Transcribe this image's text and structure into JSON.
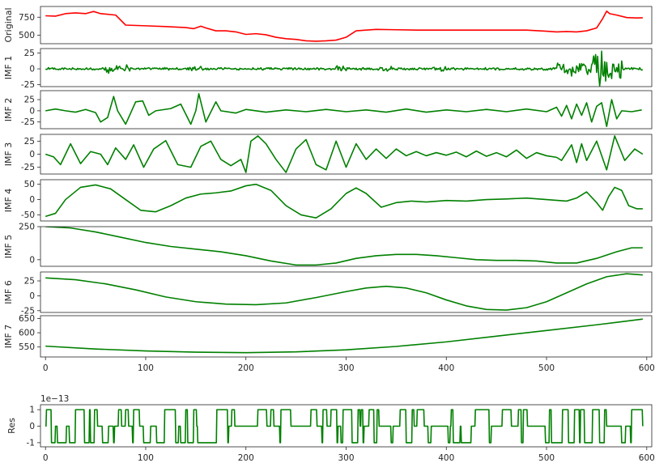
{
  "figure": {
    "background": "#ffffff",
    "axes_color": "#262626"
  },
  "chart_data": [
    {
      "type": "line",
      "ylabel": "Original",
      "ylim": [
        380,
        900
      ],
      "yticks": [
        500,
        750
      ],
      "color": "#ff0000",
      "xlim": [
        -5,
        605
      ],
      "xticks": [],
      "xtick_labels": [],
      "points": [
        [
          0,
          770
        ],
        [
          10,
          765
        ],
        [
          20,
          800
        ],
        [
          30,
          810
        ],
        [
          40,
          800
        ],
        [
          48,
          830
        ],
        [
          55,
          800
        ],
        [
          70,
          780
        ],
        [
          80,
          640
        ],
        [
          100,
          630
        ],
        [
          120,
          620
        ],
        [
          140,
          605
        ],
        [
          148,
          590
        ],
        [
          155,
          625
        ],
        [
          160,
          600
        ],
        [
          170,
          560
        ],
        [
          180,
          560
        ],
        [
          190,
          545
        ],
        [
          200,
          510
        ],
        [
          210,
          520
        ],
        [
          220,
          505
        ],
        [
          230,
          470
        ],
        [
          240,
          450
        ],
        [
          250,
          440
        ],
        [
          260,
          420
        ],
        [
          270,
          415
        ],
        [
          280,
          420
        ],
        [
          290,
          430
        ],
        [
          300,
          470
        ],
        [
          310,
          560
        ],
        [
          320,
          570
        ],
        [
          330,
          580
        ],
        [
          350,
          575
        ],
        [
          370,
          570
        ],
        [
          400,
          570
        ],
        [
          450,
          570
        ],
        [
          480,
          570
        ],
        [
          500,
          555
        ],
        [
          510,
          545
        ],
        [
          520,
          550
        ],
        [
          530,
          545
        ],
        [
          540,
          560
        ],
        [
          550,
          600
        ],
        [
          556,
          730
        ],
        [
          560,
          835
        ],
        [
          563,
          800
        ],
        [
          570,
          780
        ],
        [
          580,
          745
        ],
        [
          590,
          740
        ],
        [
          596,
          742
        ]
      ]
    },
    {
      "type": "line",
      "ylabel": "IMF 1",
      "ylim": [
        -28,
        32
      ],
      "yticks": [
        -25,
        0,
        25
      ],
      "color": "#008000",
      "xlim": [
        -5,
        605
      ],
      "xticks": [],
      "xtick_labels": [],
      "generator": "noise",
      "amplitude": 2,
      "bursts": [
        [
          60,
          85,
          7
        ],
        [
          140,
          155,
          5
        ],
        [
          290,
          305,
          5
        ],
        [
          330,
          345,
          4
        ],
        [
          385,
          400,
          4
        ],
        [
          510,
          545,
          12
        ],
        [
          545,
          575,
          28
        ]
      ]
    },
    {
      "type": "line",
      "ylabel": "IMF 2",
      "ylim": [
        -40,
        45
      ],
      "yticks": [
        -25,
        0,
        25
      ],
      "color": "#008000",
      "xlim": [
        -5,
        605
      ],
      "xticks": [],
      "xtick_labels": [],
      "points": [
        [
          0,
          0
        ],
        [
          10,
          4
        ],
        [
          20,
          0
        ],
        [
          30,
          -3
        ],
        [
          40,
          3
        ],
        [
          50,
          -4
        ],
        [
          55,
          -25
        ],
        [
          62,
          -15
        ],
        [
          68,
          32
        ],
        [
          72,
          0
        ],
        [
          80,
          -30
        ],
        [
          90,
          20
        ],
        [
          97,
          22
        ],
        [
          103,
          -10
        ],
        [
          110,
          0
        ],
        [
          125,
          5
        ],
        [
          135,
          15
        ],
        [
          145,
          -30
        ],
        [
          150,
          0
        ],
        [
          153,
          38
        ],
        [
          160,
          -25
        ],
        [
          170,
          20
        ],
        [
          175,
          0
        ],
        [
          190,
          -5
        ],
        [
          200,
          3
        ],
        [
          220,
          -3
        ],
        [
          240,
          2
        ],
        [
          260,
          -2
        ],
        [
          280,
          3
        ],
        [
          300,
          -2
        ],
        [
          320,
          2
        ],
        [
          340,
          -3
        ],
        [
          360,
          4
        ],
        [
          380,
          -3
        ],
        [
          400,
          2
        ],
        [
          420,
          -2
        ],
        [
          440,
          3
        ],
        [
          460,
          -2
        ],
        [
          480,
          4
        ],
        [
          500,
          -2
        ],
        [
          510,
          8
        ],
        [
          515,
          -12
        ],
        [
          520,
          12
        ],
        [
          525,
          -18
        ],
        [
          530,
          15
        ],
        [
          535,
          -10
        ],
        [
          540,
          18
        ],
        [
          545,
          -25
        ],
        [
          550,
          10
        ],
        [
          555,
          18
        ],
        [
          560,
          -35
        ],
        [
          565,
          25
        ],
        [
          570,
          -18
        ],
        [
          575,
          0
        ],
        [
          585,
          -2
        ],
        [
          595,
          2
        ]
      ]
    },
    {
      "type": "line",
      "ylabel": "IMF 3",
      "ylim": [
        -38,
        38
      ],
      "yticks": [
        -25,
        0,
        25
      ],
      "color": "#008000",
      "xlim": [
        -5,
        605
      ],
      "xticks": [],
      "xtick_labels": [],
      "points": [
        [
          0,
          0
        ],
        [
          8,
          -5
        ],
        [
          15,
          -20
        ],
        [
          25,
          20
        ],
        [
          35,
          -18
        ],
        [
          45,
          5
        ],
        [
          55,
          0
        ],
        [
          62,
          -20
        ],
        [
          70,
          12
        ],
        [
          80,
          -10
        ],
        [
          88,
          18
        ],
        [
          98,
          -25
        ],
        [
          108,
          10
        ],
        [
          120,
          26
        ],
        [
          132,
          -20
        ],
        [
          145,
          -25
        ],
        [
          155,
          15
        ],
        [
          165,
          25
        ],
        [
          175,
          -10
        ],
        [
          185,
          -22
        ],
        [
          195,
          -10
        ],
        [
          200,
          -35
        ],
        [
          205,
          25
        ],
        [
          212,
          35
        ],
        [
          220,
          20
        ],
        [
          230,
          -10
        ],
        [
          240,
          -35
        ],
        [
          250,
          10
        ],
        [
          260,
          28
        ],
        [
          270,
          -20
        ],
        [
          280,
          -30
        ],
        [
          290,
          25
        ],
        [
          300,
          -25
        ],
        [
          310,
          20
        ],
        [
          320,
          -10
        ],
        [
          330,
          10
        ],
        [
          340,
          -8
        ],
        [
          350,
          10
        ],
        [
          360,
          -3
        ],
        [
          370,
          5
        ],
        [
          380,
          -3
        ],
        [
          390,
          3
        ],
        [
          400,
          -2
        ],
        [
          410,
          4
        ],
        [
          420,
          -5
        ],
        [
          430,
          6
        ],
        [
          440,
          -4
        ],
        [
          450,
          3
        ],
        [
          460,
          -5
        ],
        [
          470,
          8
        ],
        [
          480,
          -8
        ],
        [
          490,
          3
        ],
        [
          500,
          -3
        ],
        [
          510,
          -6
        ],
        [
          515,
          -12
        ],
        [
          525,
          18
        ],
        [
          530,
          -16
        ],
        [
          535,
          20
        ],
        [
          540,
          -12
        ],
        [
          550,
          25
        ],
        [
          560,
          -30
        ],
        [
          568,
          35
        ],
        [
          578,
          -12
        ],
        [
          588,
          10
        ],
        [
          596,
          0
        ]
      ]
    },
    {
      "type": "line",
      "ylabel": "IMF 4",
      "ylim": [
        -70,
        65
      ],
      "yticks": [
        -50,
        0,
        50
      ],
      "color": "#008000",
      "xlim": [
        -5,
        605
      ],
      "xticks": [],
      "xtick_labels": [],
      "points": [
        [
          0,
          -55
        ],
        [
          10,
          -45
        ],
        [
          20,
          0
        ],
        [
          35,
          40
        ],
        [
          50,
          48
        ],
        [
          65,
          35
        ],
        [
          80,
          0
        ],
        [
          95,
          -35
        ],
        [
          110,
          -40
        ],
        [
          125,
          -20
        ],
        [
          140,
          5
        ],
        [
          155,
          18
        ],
        [
          170,
          22
        ],
        [
          185,
          28
        ],
        [
          200,
          45
        ],
        [
          210,
          50
        ],
        [
          225,
          30
        ],
        [
          240,
          -20
        ],
        [
          255,
          -50
        ],
        [
          270,
          -60
        ],
        [
          285,
          -30
        ],
        [
          300,
          20
        ],
        [
          310,
          38
        ],
        [
          320,
          20
        ],
        [
          335,
          -25
        ],
        [
          350,
          -10
        ],
        [
          365,
          -5
        ],
        [
          380,
          -8
        ],
        [
          400,
          -3
        ],
        [
          420,
          -5
        ],
        [
          440,
          0
        ],
        [
          460,
          2
        ],
        [
          480,
          5
        ],
        [
          500,
          0
        ],
        [
          520,
          -5
        ],
        [
          530,
          5
        ],
        [
          540,
          25
        ],
        [
          550,
          -10
        ],
        [
          556,
          -35
        ],
        [
          562,
          10
        ],
        [
          568,
          40
        ],
        [
          575,
          30
        ],
        [
          582,
          -20
        ],
        [
          590,
          -30
        ],
        [
          596,
          -30
        ]
      ]
    },
    {
      "type": "line",
      "ylabel": "IMF 5",
      "ylim": [
        -50,
        250
      ],
      "yticks": [
        0,
        250
      ],
      "color": "#008000",
      "xlim": [
        -5,
        605
      ],
      "xticks": [],
      "xtick_labels": [],
      "points": [
        [
          0,
          250
        ],
        [
          25,
          240
        ],
        [
          50,
          210
        ],
        [
          75,
          170
        ],
        [
          100,
          130
        ],
        [
          125,
          100
        ],
        [
          150,
          80
        ],
        [
          175,
          60
        ],
        [
          200,
          30
        ],
        [
          225,
          -10
        ],
        [
          250,
          -40
        ],
        [
          270,
          -40
        ],
        [
          290,
          -25
        ],
        [
          310,
          10
        ],
        [
          330,
          30
        ],
        [
          350,
          40
        ],
        [
          370,
          40
        ],
        [
          390,
          30
        ],
        [
          410,
          15
        ],
        [
          430,
          0
        ],
        [
          450,
          -5
        ],
        [
          470,
          -5
        ],
        [
          490,
          -10
        ],
        [
          510,
          -25
        ],
        [
          530,
          -25
        ],
        [
          550,
          10
        ],
        [
          570,
          60
        ],
        [
          585,
          90
        ],
        [
          596,
          90
        ]
      ]
    },
    {
      "type": "line",
      "ylabel": "IMF 6",
      "ylim": [
        -28,
        40
      ],
      "yticks": [
        -25,
        0,
        25
      ],
      "color": "#008000",
      "xlim": [
        -5,
        605
      ],
      "xticks": [],
      "xtick_labels": [],
      "points": [
        [
          0,
          30
        ],
        [
          30,
          27
        ],
        [
          60,
          20
        ],
        [
          90,
          10
        ],
        [
          120,
          -2
        ],
        [
          150,
          -10
        ],
        [
          180,
          -14
        ],
        [
          210,
          -15
        ],
        [
          240,
          -12
        ],
        [
          270,
          -3
        ],
        [
          300,
          7
        ],
        [
          320,
          13
        ],
        [
          340,
          16
        ],
        [
          360,
          13
        ],
        [
          380,
          5
        ],
        [
          400,
          -7
        ],
        [
          420,
          -17
        ],
        [
          440,
          -23
        ],
        [
          460,
          -24
        ],
        [
          480,
          -20
        ],
        [
          500,
          -10
        ],
        [
          520,
          5
        ],
        [
          540,
          20
        ],
        [
          560,
          32
        ],
        [
          580,
          37
        ],
        [
          596,
          35
        ]
      ]
    },
    {
      "type": "line",
      "ylabel": "IMF 7",
      "ylim": [
        515,
        660
      ],
      "yticks": [
        550,
        600,
        650
      ],
      "color": "#008000",
      "xlim": [
        -5,
        605
      ],
      "xticks": [
        0,
        100,
        200,
        300,
        400,
        500,
        600
      ],
      "xtick_labels": [
        "0",
        "100",
        "200",
        "300",
        "400",
        "500",
        "600"
      ],
      "points": [
        [
          0,
          553
        ],
        [
          50,
          543
        ],
        [
          100,
          536
        ],
        [
          150,
          532
        ],
        [
          200,
          530
        ],
        [
          250,
          533
        ],
        [
          300,
          540
        ],
        [
          350,
          552
        ],
        [
          400,
          568
        ],
        [
          450,
          588
        ],
        [
          500,
          608
        ],
        [
          550,
          628
        ],
        [
          596,
          648
        ]
      ]
    },
    {
      "type": "line",
      "ylabel": "Res",
      "ylim": [
        -1.25,
        1.3
      ],
      "yticks": [
        -1,
        0,
        1
      ],
      "offset_label": "1e−13",
      "color": "#008000",
      "xlim": [
        -5,
        605
      ],
      "xticks": [
        0,
        100,
        200,
        300,
        400,
        500,
        600
      ],
      "xtick_labels": [
        "0",
        "100",
        "200",
        "300",
        "400",
        "500",
        "600"
      ],
      "generator": "ternary",
      "switches": 170
    }
  ]
}
